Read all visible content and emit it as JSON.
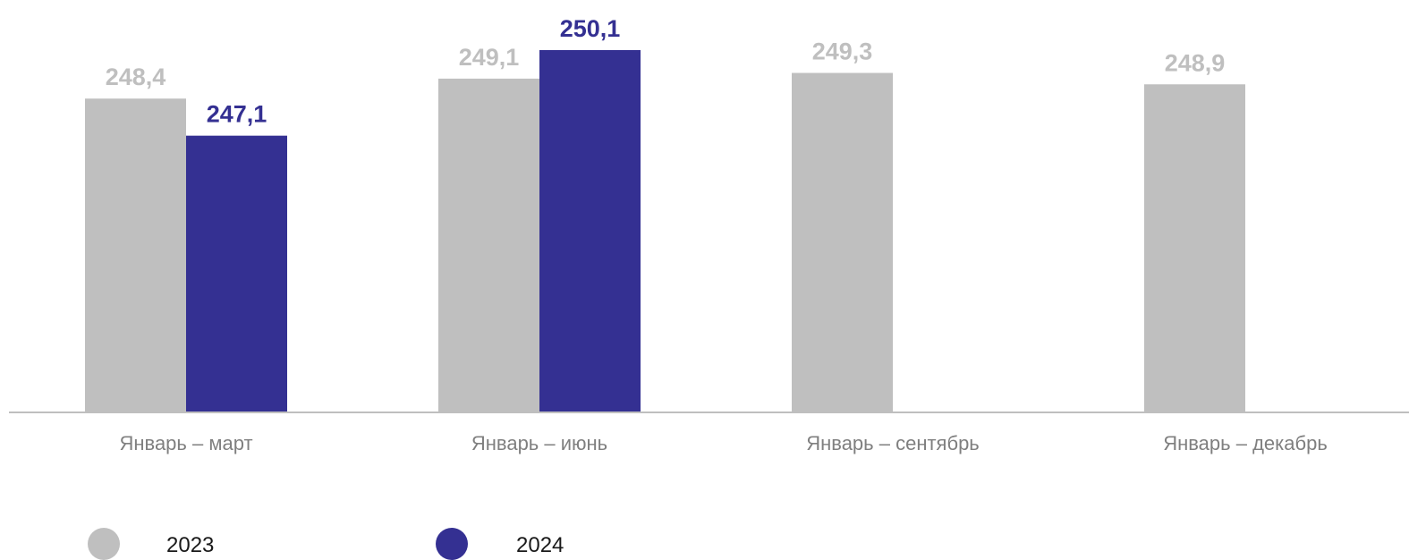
{
  "chart_data": {
    "type": "bar",
    "categories": [
      "Январь – март",
      "Январь – июнь",
      "Январь – сентябрь",
      "Январь – декабрь"
    ],
    "series": [
      {
        "name": "2023",
        "color": "#bfbfbf",
        "label_color": "#bfbfbf",
        "values": [
          248.4,
          249.1,
          249.3,
          248.9
        ],
        "labels": [
          "248,4",
          "249,1",
          "249,3",
          "248,9"
        ]
      },
      {
        "name": "2024",
        "color": "#343092",
        "label_color": "#343092",
        "values": [
          247.1,
          250.1,
          null,
          null
        ],
        "labels": [
          "247,1",
          "250,1",
          null,
          null
        ]
      }
    ],
    "title": "",
    "xlabel": "",
    "ylabel": "",
    "axis_color": "#bfbfbf",
    "grid": false,
    "legend_position": "bottom-left"
  }
}
